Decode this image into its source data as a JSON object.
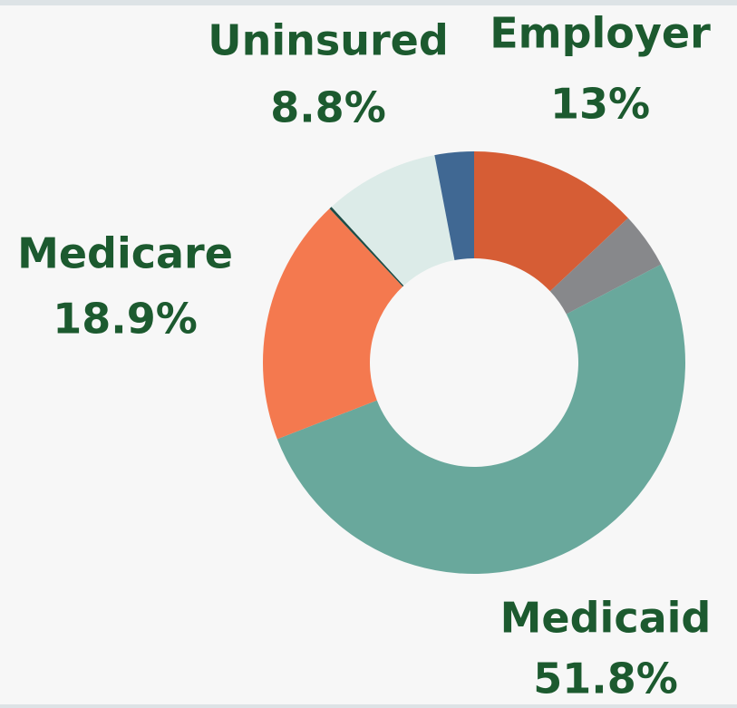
{
  "chart_data": {
    "type": "donut",
    "categories": [
      "Employer",
      null,
      "Medicaid",
      "Medicare",
      null,
      "Uninsured",
      null
    ],
    "values": [
      13,
      4.3,
      51.8,
      18.9,
      0.2,
      8.8,
      3.0
    ],
    "value_labels": [
      "13%",
      null,
      "51.8%",
      "18.9%",
      null,
      "8.8%",
      null
    ],
    "colors": [
      "#d65d35",
      "#87888b",
      "#69a89c",
      "#f4794f",
      "#1f4d47",
      "#dcebe8",
      "#406893"
    ]
  }
}
